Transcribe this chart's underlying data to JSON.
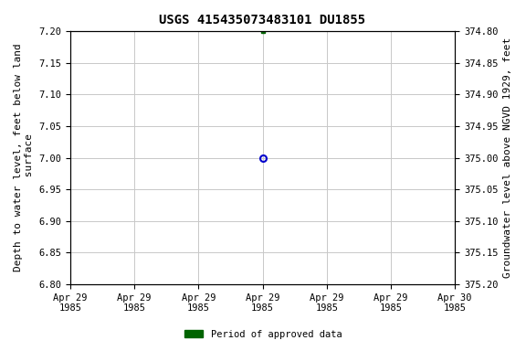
{
  "title": "USGS 415435073483101 DU1855",
  "ylabel_left": "Depth to water level, feet below land\n surface",
  "ylabel_right": "Groundwater level above NGVD 1929, feet",
  "ylim_left_top": 6.8,
  "ylim_left_bottom": 7.2,
  "ylim_right_top": 375.2,
  "ylim_right_bottom": 374.8,
  "yticks_left": [
    6.8,
    6.85,
    6.9,
    6.95,
    7.0,
    7.05,
    7.1,
    7.15,
    7.2
  ],
  "yticks_right": [
    375.2,
    375.15,
    375.1,
    375.05,
    375.0,
    374.95,
    374.9,
    374.85,
    374.8
  ],
  "ytick_labels_left": [
    "6.80",
    "6.85",
    "6.90",
    "6.95",
    "7.00",
    "7.05",
    "7.10",
    "7.15",
    "7.20"
  ],
  "ytick_labels_right": [
    "375.20",
    "375.15",
    "375.10",
    "375.05",
    "375.00",
    "374.95",
    "374.90",
    "374.85",
    "374.80"
  ],
  "point_open_x": 3.0,
  "point_open_y": 7.0,
  "point_open_color": "#0000cc",
  "point_filled_x": 3.0,
  "point_filled_y": 7.2,
  "point_filled_color": "#006400",
  "background_color": "#ffffff",
  "grid_color": "#c8c8c8",
  "title_fontsize": 10,
  "tick_fontsize": 7.5,
  "label_fontsize": 8,
  "legend_label": "Period of approved data",
  "legend_color": "#006400",
  "xlim": [
    0,
    6
  ],
  "xtick_positions": [
    0,
    1,
    2,
    3,
    4,
    5,
    6
  ],
  "xtick_line1": [
    "Apr 29",
    "Apr 29",
    "Apr 29",
    "Apr 29",
    "Apr 29",
    "Apr 29",
    "Apr 30"
  ],
  "xtick_line2": [
    "1985",
    "1985",
    "1985",
    "1985",
    "1985",
    "1985",
    "1985"
  ]
}
